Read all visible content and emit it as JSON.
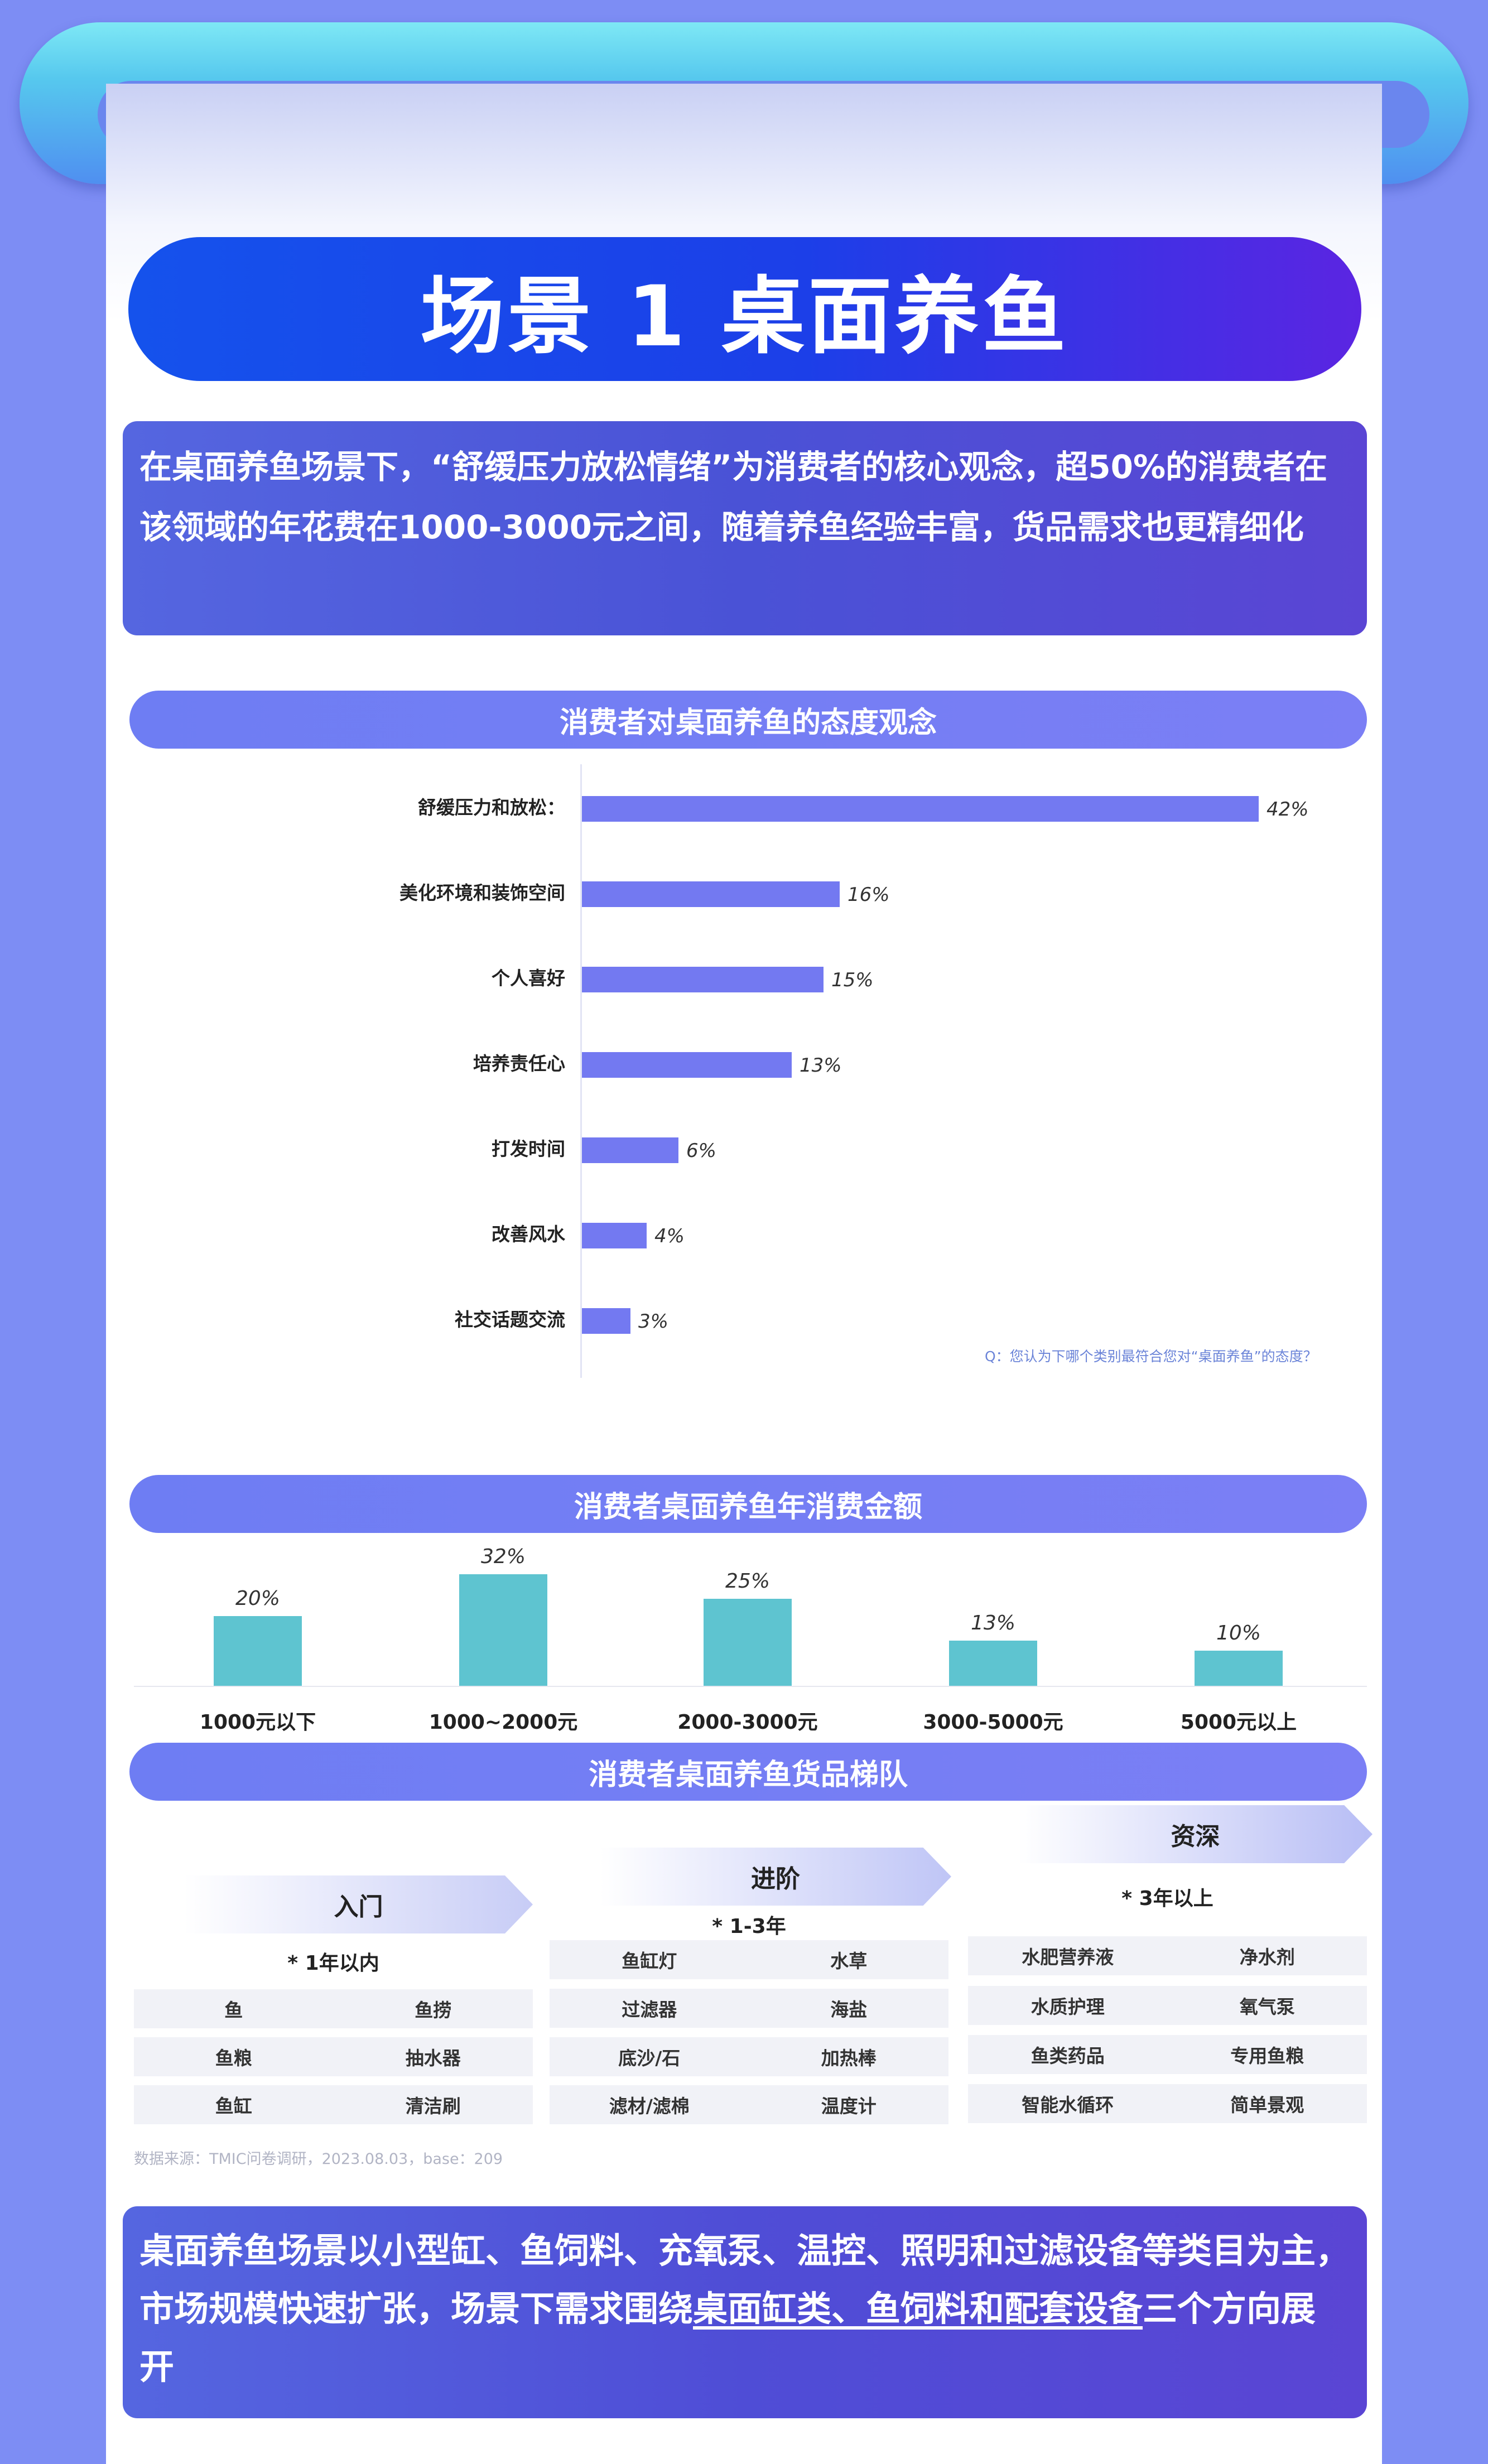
{
  "title": "场景 1 桌面养鱼",
  "intro": "在桌面养鱼场景下，“舒缓压力放松情绪”为消费者的核心观念，超50%的消费者在该领域的年花费在1000-3000元之间，随着养鱼经验丰富，货品需求也更精细化",
  "sections": {
    "attitude": "消费者对桌面养鱼的态度观念",
    "spend": "消费者桌面养鱼年消费金额",
    "tiers": "消费者桌面养鱼货品梯队"
  },
  "chart_data": [
    {
      "type": "bar",
      "orientation": "horizontal",
      "title": "消费者对桌面养鱼的态度观念",
      "categories": [
        "舒缓压力和放松：",
        "美化环境和装饰空间",
        "个人喜好",
        "培养责任心",
        "打发时间",
        "改善风水",
        "社交话题交流"
      ],
      "values": [
        42,
        16,
        15,
        13,
        6,
        4,
        3
      ],
      "value_labels": [
        "42%",
        "16%",
        "15%",
        "13%",
        "6%",
        "4%",
        "3%"
      ],
      "unit": "%",
      "xlim": [
        0,
        45
      ],
      "note": "Q：您认为下哪个类别最符合您对“桌面养鱼”的态度？"
    },
    {
      "type": "bar",
      "orientation": "vertical",
      "title": "消费者桌面养鱼年消费金额",
      "categories": [
        "1000元以下",
        "1000~2000元",
        "2000-3000元",
        "3000-5000元",
        "5000元以上"
      ],
      "values": [
        20,
        32,
        25,
        13,
        10
      ],
      "value_labels": [
        "20%",
        "32%",
        "25%",
        "13%",
        "10%"
      ],
      "unit": "%",
      "ylim": [
        0,
        32
      ]
    }
  ],
  "tiers": [
    {
      "name": "入门",
      "period": "* 1年以内",
      "rows": [
        [
          "鱼",
          "鱼捞"
        ],
        [
          "鱼粮",
          "抽水器"
        ],
        [
          "鱼缸",
          "清洁刷"
        ]
      ]
    },
    {
      "name": "进阶",
      "period": "* 1-3年",
      "rows": [
        [
          "鱼缸灯",
          "水草"
        ],
        [
          "过滤器",
          "海盐"
        ],
        [
          "底沙/石",
          "加热棒"
        ],
        [
          "滤材/滤棉",
          "温度计"
        ]
      ]
    },
    {
      "name": "资深",
      "period": "* 3年以上",
      "rows": [
        [
          "水肥营养液",
          "净水剂"
        ],
        [
          "水质护理",
          "氧气泵"
        ],
        [
          "鱼类药品",
          "专用鱼粮"
        ],
        [
          "智能水循环",
          "简单景观"
        ]
      ]
    }
  ],
  "source": "数据来源：TMIC问卷调研，2023.08.03，base：209",
  "summary": {
    "part1": "桌面养鱼场景以小型缸、鱼饲料、充氧泵、温控、照明和过滤设备等类目为主，市场规模快速扩张，场景下需求围绕",
    "highlight": "桌面缸类、鱼饲料和配套设备",
    "part2": "三个方向展开"
  },
  "colors": {
    "title_bg": "#1c3fe8",
    "section_bar": "#7379f1",
    "attitude_bar": "#7379f1",
    "spend_bar": "#5ec4d0",
    "page_bg": "#7d8df4"
  }
}
